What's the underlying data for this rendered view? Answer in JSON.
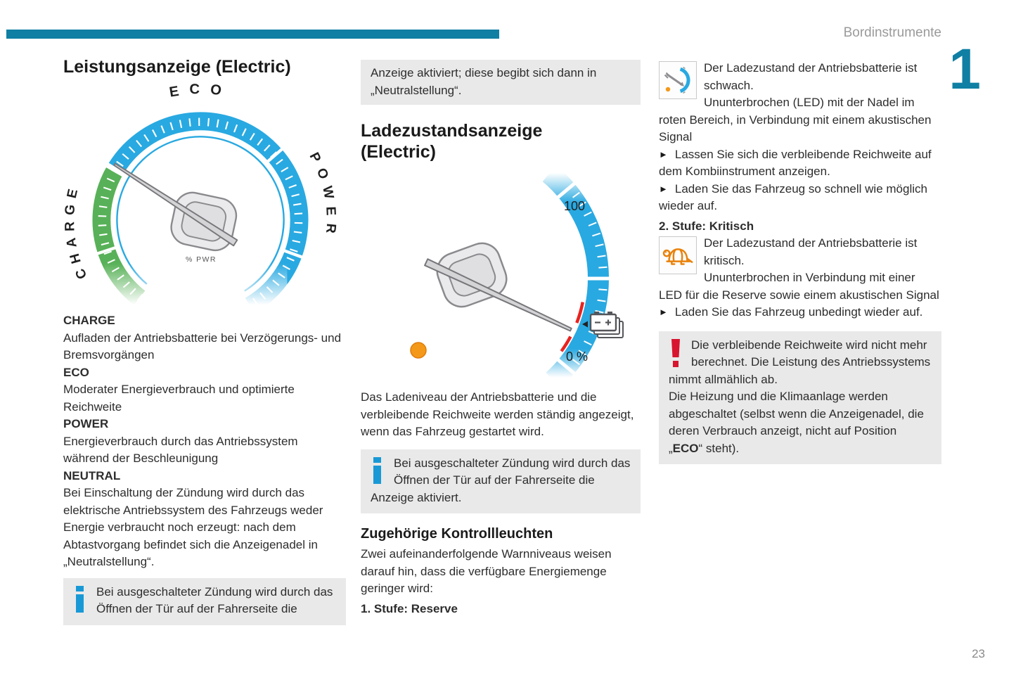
{
  "header": {
    "section_label": "Bordinstrumente",
    "chapter_number": "1"
  },
  "glyphs": {
    "action_arrow": "►",
    "info_icon": "i",
    "warning_icon": "!"
  },
  "colors": {
    "accent_teal": "#0F7FA4",
    "info_blue": "#1899D6",
    "warning_red": "#D8142E",
    "gauge_blue": "#29A9E1",
    "gauge_green": "#58B158",
    "indicator_orange": "#F49819",
    "gauge_red_zone": "#E8231F"
  },
  "left_column": {
    "title": "Leistungsanzeige (Electric)",
    "gauge": {
      "eco_label": "ECO",
      "charge_label": "CHARGE",
      "power_label": "POWER",
      "center_label": "% PWR"
    },
    "definitions": [
      {
        "term": "CHARGE",
        "description": "Aufladen der Antriebsbatterie bei Verzögerungs- und Bremsvorgängen"
      },
      {
        "term": "ECO",
        "description": "Moderater Energieverbrauch und optimierte Reichweite"
      },
      {
        "term": "POWER",
        "description": "Energieverbrauch durch das Antriebssystem während der Beschleunigung"
      },
      {
        "term": "NEUTRAL",
        "description": "Bei Einschaltung der Zündung wird durch das elektrische Antriebssystem des Fahrzeugs weder Energie verbraucht noch erzeugt: nach dem Abtastvorgang befindet sich die Anzeigenadel in „Neutralstellung“."
      }
    ],
    "info_box_text": "Bei ausgeschalteter Zündung wird durch das Öffnen der Tür auf der Fahrerseite die"
  },
  "middle_column": {
    "continuation_box_text": "Anzeige aktiviert; diese begibt sich dann in „Neutralstellung“.",
    "title": "Ladezustandsanzeige (Electric)",
    "gauge": {
      "max_label": "100",
      "min_label": "0 %"
    },
    "paragraph": "Das Ladeniveau der Antriebsbatterie und die verbleibende Reichweite werden ständig angezeigt, wenn das Fahrzeug gestartet wird.",
    "info_box_text": "Bei ausgeschalteter Zündung wird durch das Öffnen der Tür auf der Fahrerseite die Anzeige aktiviert.",
    "section_heading": "Zugehörige Kontrollleuchten",
    "section_intro": "Zwei aufeinanderfolgende Warnniveaus weisen darauf hin, dass die verfügbare Energiemenge geringer wird:",
    "level1_label": "1. Stufe: Reserve"
  },
  "right_column": {
    "level1": {
      "lead": "Der Ladezustand der Antriebsbatterie ist schwach.",
      "body": "Ununterbrochen (LED) mit der Nadel im roten Bereich, in Verbindung mit einem akustischen Signal",
      "actions": [
        "Lassen Sie sich die verbleibende Reichweite auf dem Kombiinstrument anzeigen.",
        "Laden Sie das Fahrzeug so schnell wie möglich wieder auf."
      ]
    },
    "level2_label": "2. Stufe: Kritisch",
    "level2": {
      "lead": "Der Ladezustand der Antriebsbatterie ist kritisch.",
      "body": "Ununterbrochen in Verbindung mit einer LED für die Reserve sowie einem akustischen Signal",
      "actions": [
        "Laden Sie das Fahrzeug unbedingt wieder auf."
      ]
    },
    "warning_box": {
      "paragraph1": "Die verbleibende Reichweite wird nicht mehr berechnet. Die Leistung des Antriebssystems nimmt allmählich ab.",
      "paragraph2_before": "Die Heizung und die Klimaanlage werden abgeschaltet (selbst wenn die Anzeigenadel, die deren Verbrauch anzeigt, nicht auf Position „",
      "paragraph2_bold": "ECO",
      "paragraph2_after": "“ steht)."
    }
  },
  "footer": {
    "page_number": "23"
  }
}
